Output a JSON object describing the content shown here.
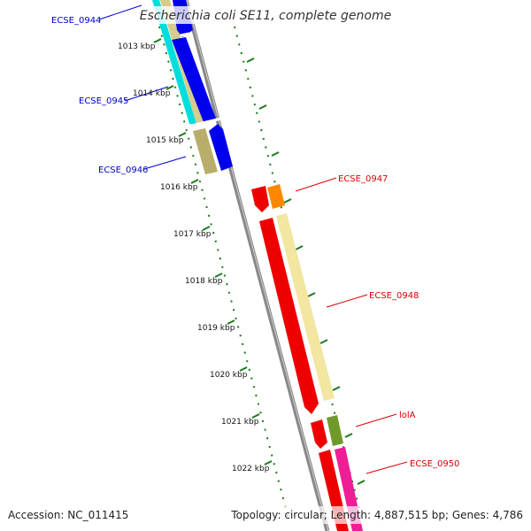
{
  "header": {
    "title": "Escherichia coli SE11, complete genome"
  },
  "footer": {
    "accession": "Accession: NC_011415",
    "topology": "Topology: circular; Length: 4,887,515 bp; Genes: 4,786"
  },
  "ruler": {
    "ticks": [
      "1013 kbp",
      "1014 kbp",
      "1015 kbp",
      "1016 kbp",
      "1017 kbp",
      "1018 kbp",
      "1019 kbp",
      "1020 kbp",
      "1021 kbp",
      "1022 kbp"
    ]
  },
  "genes": {
    "left": [
      "ECSE_0944",
      "ECSE_0945",
      "ECSE_0946"
    ],
    "right": [
      "ECSE_0947",
      "ECSE_0948",
      "lolA",
      "ECSE_0950"
    ]
  },
  "colors": {
    "left_label": "#0000cc",
    "right_label": "#dd0000",
    "blue": "#0000ee",
    "cyan": "#00dddd",
    "khaki": "#b8ae6a",
    "red": "#ee0000",
    "orange": "#ff8800",
    "pale_yellow": "#f2e6a0",
    "olive": "#6f9a2a",
    "magenta": "#ee1e96",
    "backbone": "#888888",
    "tick_green": "#1a7a1a"
  }
}
